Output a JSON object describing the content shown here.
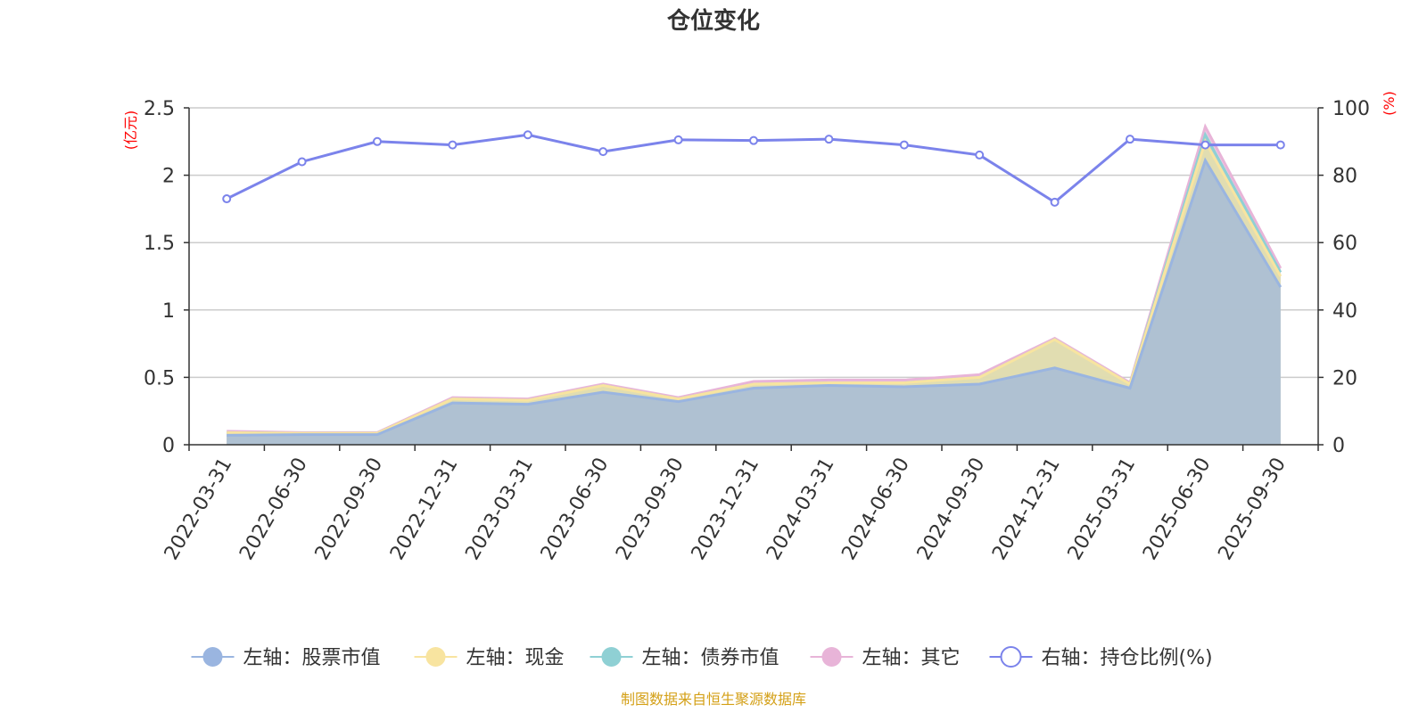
{
  "chart_data": {
    "type": "area",
    "title": "仓位变化",
    "left_axis_unit": "(亿元)",
    "right_axis_unit": "(%)",
    "ylim_left": [
      0,
      2.5
    ],
    "yticks_left": [
      "0",
      "0.5",
      "1",
      "1.5",
      "2",
      "2.5"
    ],
    "ylim_right": [
      0,
      100
    ],
    "yticks_right": [
      "0",
      "20",
      "40",
      "60",
      "80",
      "100"
    ],
    "categories": [
      "2022-03-31",
      "2022-06-30",
      "2022-09-30",
      "2022-12-31",
      "2023-03-31",
      "2023-06-30",
      "2023-09-30",
      "2023-12-31",
      "2024-03-31",
      "2024-06-30",
      "2024-09-30",
      "2024-12-31",
      "2025-03-31",
      "2025-06-30",
      "2025-09-30"
    ],
    "series": [
      {
        "name": "左轴：股票市值",
        "axis": "left",
        "stack": true,
        "color": "#9ab5e0",
        "values": [
          0.07,
          0.075,
          0.075,
          0.31,
          0.3,
          0.39,
          0.32,
          0.42,
          0.44,
          0.43,
          0.45,
          0.57,
          0.42,
          2.11,
          1.17
        ]
      },
      {
        "name": "左轴：现金",
        "axis": "left",
        "stack": true,
        "color": "#f8e4a0",
        "values": [
          0.02,
          0.01,
          0.01,
          0.03,
          0.03,
          0.05,
          0.02,
          0.03,
          0.02,
          0.03,
          0.05,
          0.21,
          0.03,
          0.14,
          0.08
        ]
      },
      {
        "name": "左轴：债券市值",
        "axis": "left",
        "stack": true,
        "color": "#8fd0d4",
        "values": [
          0,
          0,
          0,
          0,
          0,
          0,
          0,
          0,
          0,
          0,
          0,
          0,
          0,
          0.05,
          0.03
        ]
      },
      {
        "name": "左轴：其它",
        "axis": "left",
        "stack": true,
        "color": "#e8b4d8",
        "values": [
          0.01,
          0.005,
          0.005,
          0.01,
          0.01,
          0.01,
          0.01,
          0.02,
          0.02,
          0.02,
          0.02,
          0.01,
          0.01,
          0.06,
          0.03
        ]
      },
      {
        "name": "右轴：持仓比例(%)",
        "axis": "right",
        "stack": false,
        "color": "#7b83eb",
        "values": [
          73,
          84,
          90,
          89,
          92,
          87,
          90.5,
          90.3,
          90.7,
          89,
          86,
          72,
          90.7,
          89,
          89
        ]
      }
    ],
    "legend_position": "bottom",
    "grid": true
  },
  "source_text": "制图数据来自恒生聚源数据库"
}
